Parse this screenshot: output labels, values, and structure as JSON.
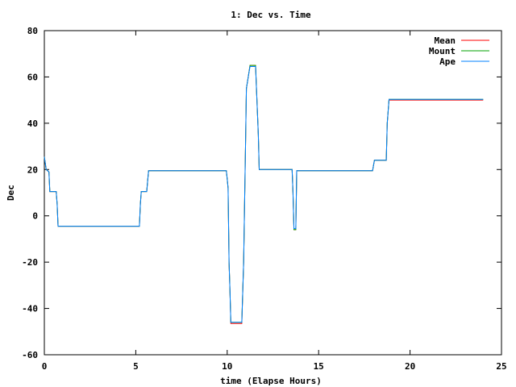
{
  "chart_data": {
    "type": "line",
    "title": "1: Dec vs. Time",
    "xlabel": "time (Elapse Hours)",
    "ylabel": "Dec",
    "xlim": [
      0,
      25
    ],
    "ylim": [
      -60,
      80
    ],
    "xticks": [
      0,
      5,
      10,
      15,
      20,
      25
    ],
    "yticks": [
      -60,
      -40,
      -20,
      0,
      20,
      40,
      60,
      80
    ],
    "grid": false,
    "legend_position": "top-right",
    "series": [
      {
        "name": "Mean",
        "color": "#ff0000",
        "points": [
          [
            0.0,
            25.5
          ],
          [
            0.1,
            20
          ],
          [
            0.25,
            19
          ],
          [
            0.3,
            10.5
          ],
          [
            0.65,
            10.5
          ],
          [
            0.7,
            5
          ],
          [
            0.75,
            -4.5
          ],
          [
            5.2,
            -4.5
          ],
          [
            5.25,
            5
          ],
          [
            5.3,
            10.5
          ],
          [
            5.6,
            10.5
          ],
          [
            5.65,
            15
          ],
          [
            5.7,
            19.5
          ],
          [
            9.95,
            19.5
          ],
          [
            10.0,
            16
          ],
          [
            10.05,
            12
          ],
          [
            10.1,
            -20
          ],
          [
            10.15,
            -32
          ],
          [
            10.2,
            -46.5
          ],
          [
            10.8,
            -46.5
          ],
          [
            10.9,
            -20
          ],
          [
            11.0,
            30
          ],
          [
            11.05,
            55
          ],
          [
            11.15,
            60
          ],
          [
            11.25,
            65
          ],
          [
            11.55,
            65
          ],
          [
            11.6,
            55
          ],
          [
            11.7,
            35
          ],
          [
            11.75,
            20
          ],
          [
            13.55,
            20
          ],
          [
            13.6,
            10
          ],
          [
            13.65,
            -6
          ],
          [
            13.75,
            -6
          ],
          [
            13.8,
            19.5
          ],
          [
            17.95,
            19.5
          ],
          [
            18.05,
            24
          ],
          [
            18.7,
            24
          ],
          [
            18.75,
            40
          ],
          [
            18.85,
            50
          ],
          [
            24.0,
            50
          ]
        ]
      },
      {
        "name": "Mount",
        "color": "#00a000",
        "points": [
          [
            0.0,
            25.5
          ],
          [
            0.1,
            20
          ],
          [
            0.25,
            19
          ],
          [
            0.3,
            10.5
          ],
          [
            0.65,
            10.5
          ],
          [
            0.7,
            5
          ],
          [
            0.75,
            -4.5
          ],
          [
            5.2,
            -4.5
          ],
          [
            5.25,
            5
          ],
          [
            5.3,
            10.5
          ],
          [
            5.6,
            10.5
          ],
          [
            5.65,
            15
          ],
          [
            5.7,
            19.5
          ],
          [
            9.95,
            19.5
          ],
          [
            10.0,
            16
          ],
          [
            10.05,
            12
          ],
          [
            10.1,
            -20
          ],
          [
            10.15,
            -32
          ],
          [
            10.2,
            -46
          ],
          [
            10.8,
            -46
          ],
          [
            10.9,
            -20
          ],
          [
            11.0,
            30
          ],
          [
            11.05,
            55
          ],
          [
            11.15,
            60
          ],
          [
            11.25,
            65
          ],
          [
            11.55,
            65
          ],
          [
            11.6,
            55
          ],
          [
            11.7,
            35
          ],
          [
            11.75,
            20
          ],
          [
            13.55,
            20
          ],
          [
            13.6,
            10
          ],
          [
            13.65,
            -6
          ],
          [
            13.75,
            -6
          ],
          [
            13.8,
            19.5
          ],
          [
            17.95,
            19.5
          ],
          [
            18.05,
            24
          ],
          [
            18.7,
            24
          ],
          [
            18.75,
            40
          ],
          [
            18.85,
            50.3
          ],
          [
            24.0,
            50.3
          ]
        ]
      },
      {
        "name": "Ape",
        "color": "#0080ff",
        "points": [
          [
            0.0,
            25.5
          ],
          [
            0.1,
            20
          ],
          [
            0.25,
            19
          ],
          [
            0.3,
            10.5
          ],
          [
            0.65,
            10.5
          ],
          [
            0.7,
            5
          ],
          [
            0.75,
            -4.5
          ],
          [
            5.2,
            -4.5
          ],
          [
            5.25,
            5
          ],
          [
            5.3,
            10.5
          ],
          [
            5.6,
            10.5
          ],
          [
            5.65,
            15
          ],
          [
            5.7,
            19.5
          ],
          [
            9.95,
            19.5
          ],
          [
            10.0,
            16
          ],
          [
            10.05,
            12
          ],
          [
            10.1,
            -20
          ],
          [
            10.15,
            -32
          ],
          [
            10.2,
            -46
          ],
          [
            10.8,
            -46
          ],
          [
            10.9,
            -20
          ],
          [
            11.0,
            30
          ],
          [
            11.05,
            55
          ],
          [
            11.15,
            60
          ],
          [
            11.25,
            64.5
          ],
          [
            11.55,
            64.5
          ],
          [
            11.6,
            55
          ],
          [
            11.7,
            35
          ],
          [
            11.75,
            20
          ],
          [
            13.55,
            20
          ],
          [
            13.6,
            10
          ],
          [
            13.65,
            -5.5
          ],
          [
            13.75,
            -5.5
          ],
          [
            13.8,
            19.5
          ],
          [
            17.95,
            19.5
          ],
          [
            18.05,
            24
          ],
          [
            18.7,
            24
          ],
          [
            18.75,
            40
          ],
          [
            18.85,
            50.3
          ],
          [
            24.0,
            50.3
          ]
        ]
      }
    ]
  }
}
